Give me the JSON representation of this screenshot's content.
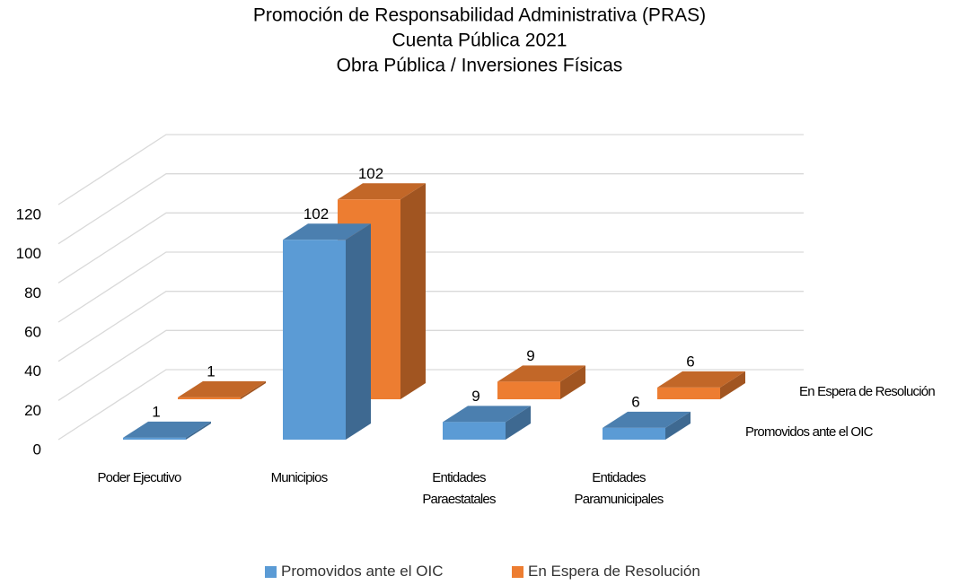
{
  "chart_data": {
    "type": "bar3d",
    "title": [
      "Promoción de Responsabilidad Administrativa (PRAS)",
      "Cuenta Pública 2021",
      "Obra Pública / Inversiones Físicas"
    ],
    "categories": [
      "Poder Ejecutivo",
      "Municipios",
      "Entidades Paraestatales",
      "Entidades Paramunicipales"
    ],
    "series": [
      {
        "name": "Promovidos ante el OIC",
        "color": "#5b9bd5",
        "values": [
          1,
          102,
          9,
          6
        ]
      },
      {
        "name": "En Espera de Resolución",
        "color": "#ed7d31",
        "values": [
          1,
          102,
          9,
          6
        ]
      }
    ],
    "ylim": [
      0,
      120
    ],
    "yticks": [
      0,
      20,
      40,
      60,
      80,
      100,
      120
    ],
    "grid": true,
    "legend": "bottom"
  }
}
